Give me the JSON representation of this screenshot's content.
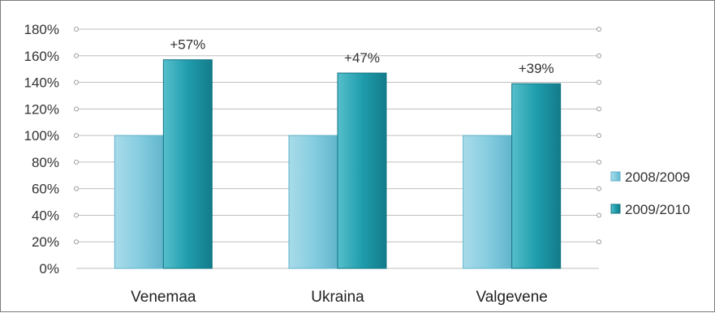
{
  "chart_data": {
    "type": "bar",
    "categories": [
      "Venemaa",
      "Ukraina",
      "Valgevene"
    ],
    "series": [
      {
        "name": "2008/2009",
        "values": [
          100,
          100,
          100
        ],
        "color": "#7ec8dc"
      },
      {
        "name": "2009/2010",
        "values": [
          157,
          147,
          139
        ],
        "color": "#1e9aaa"
      }
    ],
    "data_labels": [
      "+57%",
      "+47%",
      "+39%"
    ],
    "y_ticks": [
      "0%",
      "20%",
      "40%",
      "60%",
      "80%",
      "100%",
      "120%",
      "140%",
      "160%",
      "180%"
    ],
    "ylim": [
      0,
      180
    ],
    "grid": true,
    "legend_position": "right",
    "title": "",
    "xlabel": "",
    "ylabel": ""
  }
}
